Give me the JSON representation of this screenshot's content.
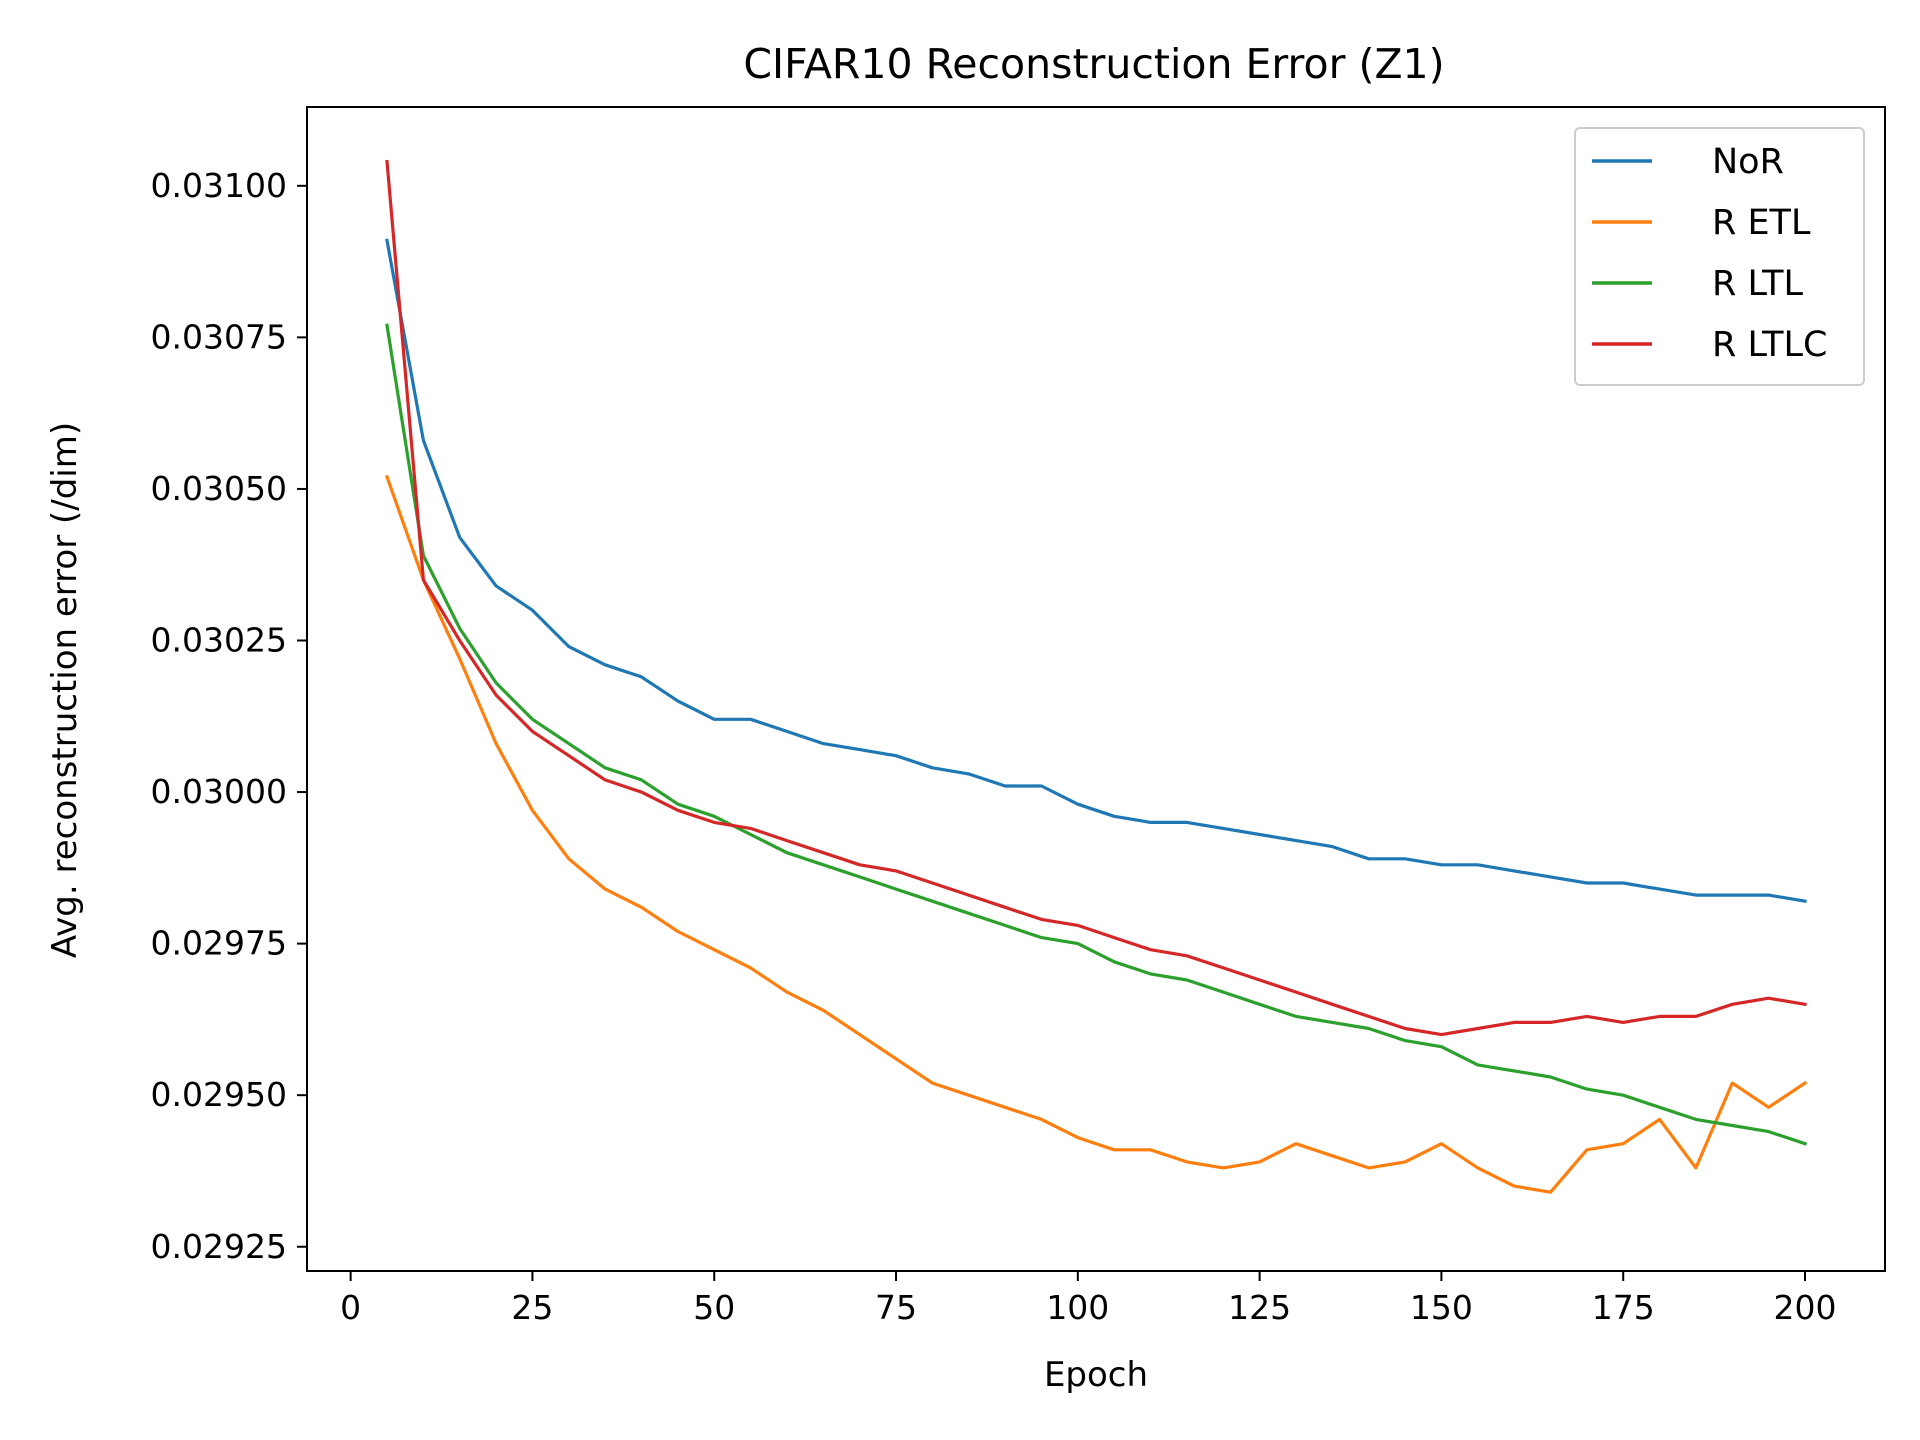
{
  "chart_data": {
    "type": "line",
    "title": "CIFAR10 Reconstruction Error (Z1)",
    "xlabel": "Epoch",
    "ylabel": "Avg. reconstruction error (/dim)",
    "xlim": [
      -6,
      211
    ],
    "ylim": [
      0.02921,
      0.03113
    ],
    "xticks": [
      0,
      25,
      50,
      75,
      100,
      125,
      150,
      175,
      200
    ],
    "xtick_labels": [
      "0",
      "25",
      "50",
      "75",
      "100",
      "125",
      "150",
      "175",
      "200"
    ],
    "yticks": [
      0.02925,
      0.0295,
      0.02975,
      0.03,
      0.03025,
      0.0305,
      0.03075,
      0.031
    ],
    "ytick_labels": [
      "0.02925",
      "0.02950",
      "0.02975",
      "0.03000",
      "0.03025",
      "0.03050",
      "0.03075",
      "0.03100"
    ],
    "grid": false,
    "legend_position": "top-right",
    "x": [
      5,
      10,
      15,
      20,
      25,
      30,
      35,
      40,
      45,
      50,
      55,
      60,
      65,
      70,
      75,
      80,
      85,
      90,
      95,
      100,
      105,
      110,
      115,
      120,
      125,
      130,
      135,
      140,
      145,
      150,
      155,
      160,
      165,
      170,
      175,
      180,
      185,
      190,
      195,
      200
    ],
    "series": [
      {
        "name": "NoR",
        "color": "#1f77b4",
        "values": [
          0.03091,
          0.03058,
          0.03042,
          0.03034,
          0.0303,
          0.03024,
          0.03021,
          0.03019,
          0.03015,
          0.03012,
          0.03012,
          0.0301,
          0.03008,
          0.03007,
          0.03006,
          0.03004,
          0.03003,
          0.03001,
          0.03001,
          0.02998,
          0.02996,
          0.02995,
          0.02995,
          0.02994,
          0.02993,
          0.02992,
          0.02991,
          0.02989,
          0.02989,
          0.02988,
          0.02988,
          0.02987,
          0.02986,
          0.02985,
          0.02985,
          0.02984,
          0.02983,
          0.02983,
          0.02983,
          0.02982
        ]
      },
      {
        "name": "R ETL",
        "color": "#ff7f0e",
        "values": [
          0.03052,
          0.03035,
          0.03022,
          0.03008,
          0.02997,
          0.02989,
          0.02984,
          0.02981,
          0.02977,
          0.02974,
          0.02971,
          0.02967,
          0.02964,
          0.0296,
          0.02956,
          0.02952,
          0.0295,
          0.02948,
          0.02946,
          0.02943,
          0.02941,
          0.02941,
          0.02939,
          0.02938,
          0.02939,
          0.02942,
          0.0294,
          0.02938,
          0.02939,
          0.02942,
          0.02938,
          0.02935,
          0.02934,
          0.02941,
          0.02942,
          0.02946,
          0.02938,
          0.02952,
          0.02948,
          0.02952
        ]
      },
      {
        "name": "R LTL",
        "color": "#2ca02c",
        "values": [
          0.03077,
          0.03039,
          0.03027,
          0.03018,
          0.03012,
          0.03008,
          0.03004,
          0.03002,
          0.02998,
          0.02996,
          0.02993,
          0.0299,
          0.02988,
          0.02986,
          0.02984,
          0.02982,
          0.0298,
          0.02978,
          0.02976,
          0.02975,
          0.02972,
          0.0297,
          0.02969,
          0.02967,
          0.02965,
          0.02963,
          0.02962,
          0.02961,
          0.02959,
          0.02958,
          0.02955,
          0.02954,
          0.02953,
          0.02951,
          0.0295,
          0.02948,
          0.02946,
          0.02945,
          0.02944,
          0.02942
        ]
      },
      {
        "name": "R LTLC",
        "color": "#d62728",
        "values": [
          0.03104,
          0.03035,
          0.03025,
          0.03016,
          0.0301,
          0.03006,
          0.03002,
          0.03,
          0.02997,
          0.02995,
          0.02994,
          0.02992,
          0.0299,
          0.02988,
          0.02987,
          0.02985,
          0.02983,
          0.02981,
          0.02979,
          0.02978,
          0.02976,
          0.02974,
          0.02973,
          0.02971,
          0.02969,
          0.02967,
          0.02965,
          0.02963,
          0.02961,
          0.0296,
          0.02961,
          0.02962,
          0.02962,
          0.02963,
          0.02962,
          0.02963,
          0.02963,
          0.02965,
          0.02966,
          0.02965
        ]
      }
    ]
  }
}
